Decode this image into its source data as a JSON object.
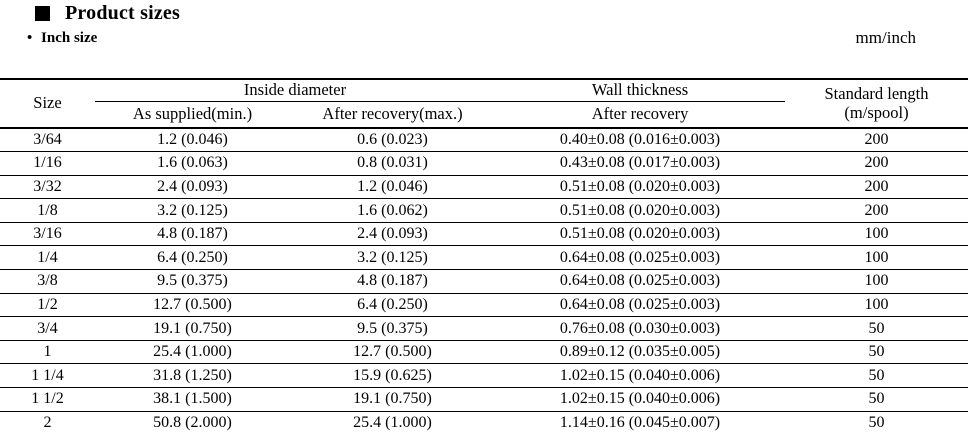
{
  "page": {
    "section_title": "Product sizes",
    "subtitle": "Inch size",
    "unit_note": "mm/inch"
  },
  "table": {
    "columns": {
      "size": "Size",
      "inside_diameter": "Inside diameter",
      "as_supplied": "As supplied(min.)",
      "after_recovery_max": "After recovery(max.)",
      "wall_thickness": "Wall thickness",
      "after_recovery": "After recovery",
      "standard_length_line1": "Standard length",
      "standard_length_line2": "(m/spool)"
    },
    "rows": [
      [
        "3/64",
        "1.2 (0.046)",
        "0.6 (0.023)",
        "0.40±0.08 (0.016±0.003)",
        "200"
      ],
      [
        "1/16",
        "1.6 (0.063)",
        "0.8 (0.031)",
        "0.43±0.08 (0.017±0.003)",
        "200"
      ],
      [
        "3/32",
        "2.4 (0.093)",
        "1.2 (0.046)",
        "0.51±0.08 (0.020±0.003)",
        "200"
      ],
      [
        "1/8",
        "3.2 (0.125)",
        "1.6 (0.062)",
        "0.51±0.08 (0.020±0.003)",
        "200"
      ],
      [
        "3/16",
        "4.8 (0.187)",
        "2.4 (0.093)",
        "0.51±0.08 (0.020±0.003)",
        "100"
      ],
      [
        "1/4",
        "6.4 (0.250)",
        "3.2 (0.125)",
        "0.64±0.08 (0.025±0.003)",
        "100"
      ],
      [
        "3/8",
        "9.5 (0.375)",
        "4.8 (0.187)",
        "0.64±0.08 (0.025±0.003)",
        "100"
      ],
      [
        "1/2",
        "12.7 (0.500)",
        "6.4 (0.250)",
        "0.64±0.08 (0.025±0.003)",
        "100"
      ],
      [
        "3/4",
        "19.1 (0.750)",
        "9.5 (0.375)",
        "0.76±0.08 (0.030±0.003)",
        "50"
      ],
      [
        "1",
        "25.4 (1.000)",
        "12.7 (0.500)",
        "0.89±0.12 (0.035±0.005)",
        "50"
      ],
      [
        "1 1/4",
        "31.8 (1.250)",
        "15.9 (0.625)",
        "1.02±0.15 (0.040±0.006)",
        "50"
      ],
      [
        "1 1/2",
        "38.1 (1.500)",
        "19.1 (0.750)",
        "1.02±0.15 (0.040±0.006)",
        "50"
      ],
      [
        "2",
        "50.8 (2.000)",
        "25.4 (1.000)",
        "1.14±0.16 (0.045±0.007)",
        "50"
      ]
    ]
  }
}
